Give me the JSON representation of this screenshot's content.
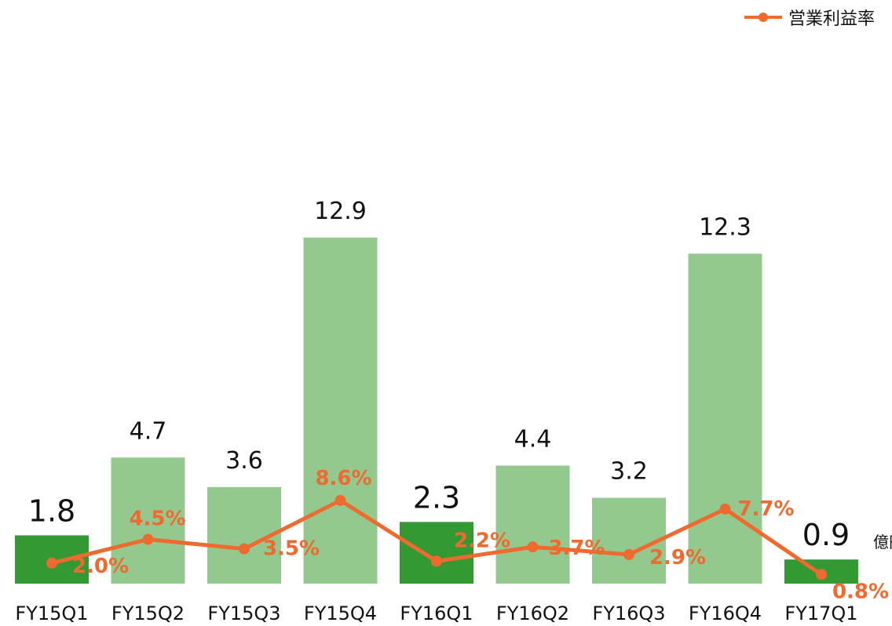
{
  "colors": {
    "bar_dark": "#339933",
    "bar_light": "#93C98F",
    "line": "#EE6A2E",
    "value_label": "#111111",
    "pct_label": "#EE6A2E"
  },
  "chart_data": {
    "type": "bar",
    "categories": [
      "FY15Q1",
      "FY15Q2",
      "FY15Q3",
      "FY15Q4",
      "FY16Q1",
      "FY16Q2",
      "FY16Q3",
      "FY16Q4",
      "FY17Q1"
    ],
    "series": [
      {
        "type": "bar",
        "values": [
          1.8,
          4.7,
          3.6,
          12.9,
          2.3,
          4.4,
          3.2,
          12.3,
          0.9
        ],
        "labels": [
          "1.8",
          "4.7",
          "3.6",
          "12.9",
          "2.3",
          "4.4",
          "3.2",
          "12.3",
          "0.9"
        ],
        "highlight": [
          true,
          false,
          false,
          false,
          true,
          false,
          false,
          false,
          true
        ]
      },
      {
        "type": "line",
        "name": "営業利益率",
        "values": [
          2.0,
          4.5,
          3.5,
          8.6,
          2.2,
          3.7,
          2.9,
          7.7,
          0.8
        ],
        "labels": [
          "2.0%",
          "4.5%",
          "3.5%",
          "8.6%",
          "2.2%",
          "3.7%",
          "2.9%",
          "7.7%",
          "0.8%"
        ]
      }
    ],
    "unit_label": "億円",
    "legend": {
      "position": "top-right",
      "entries": [
        "営業利益率"
      ]
    },
    "grid": false,
    "axes_visible": false
  }
}
